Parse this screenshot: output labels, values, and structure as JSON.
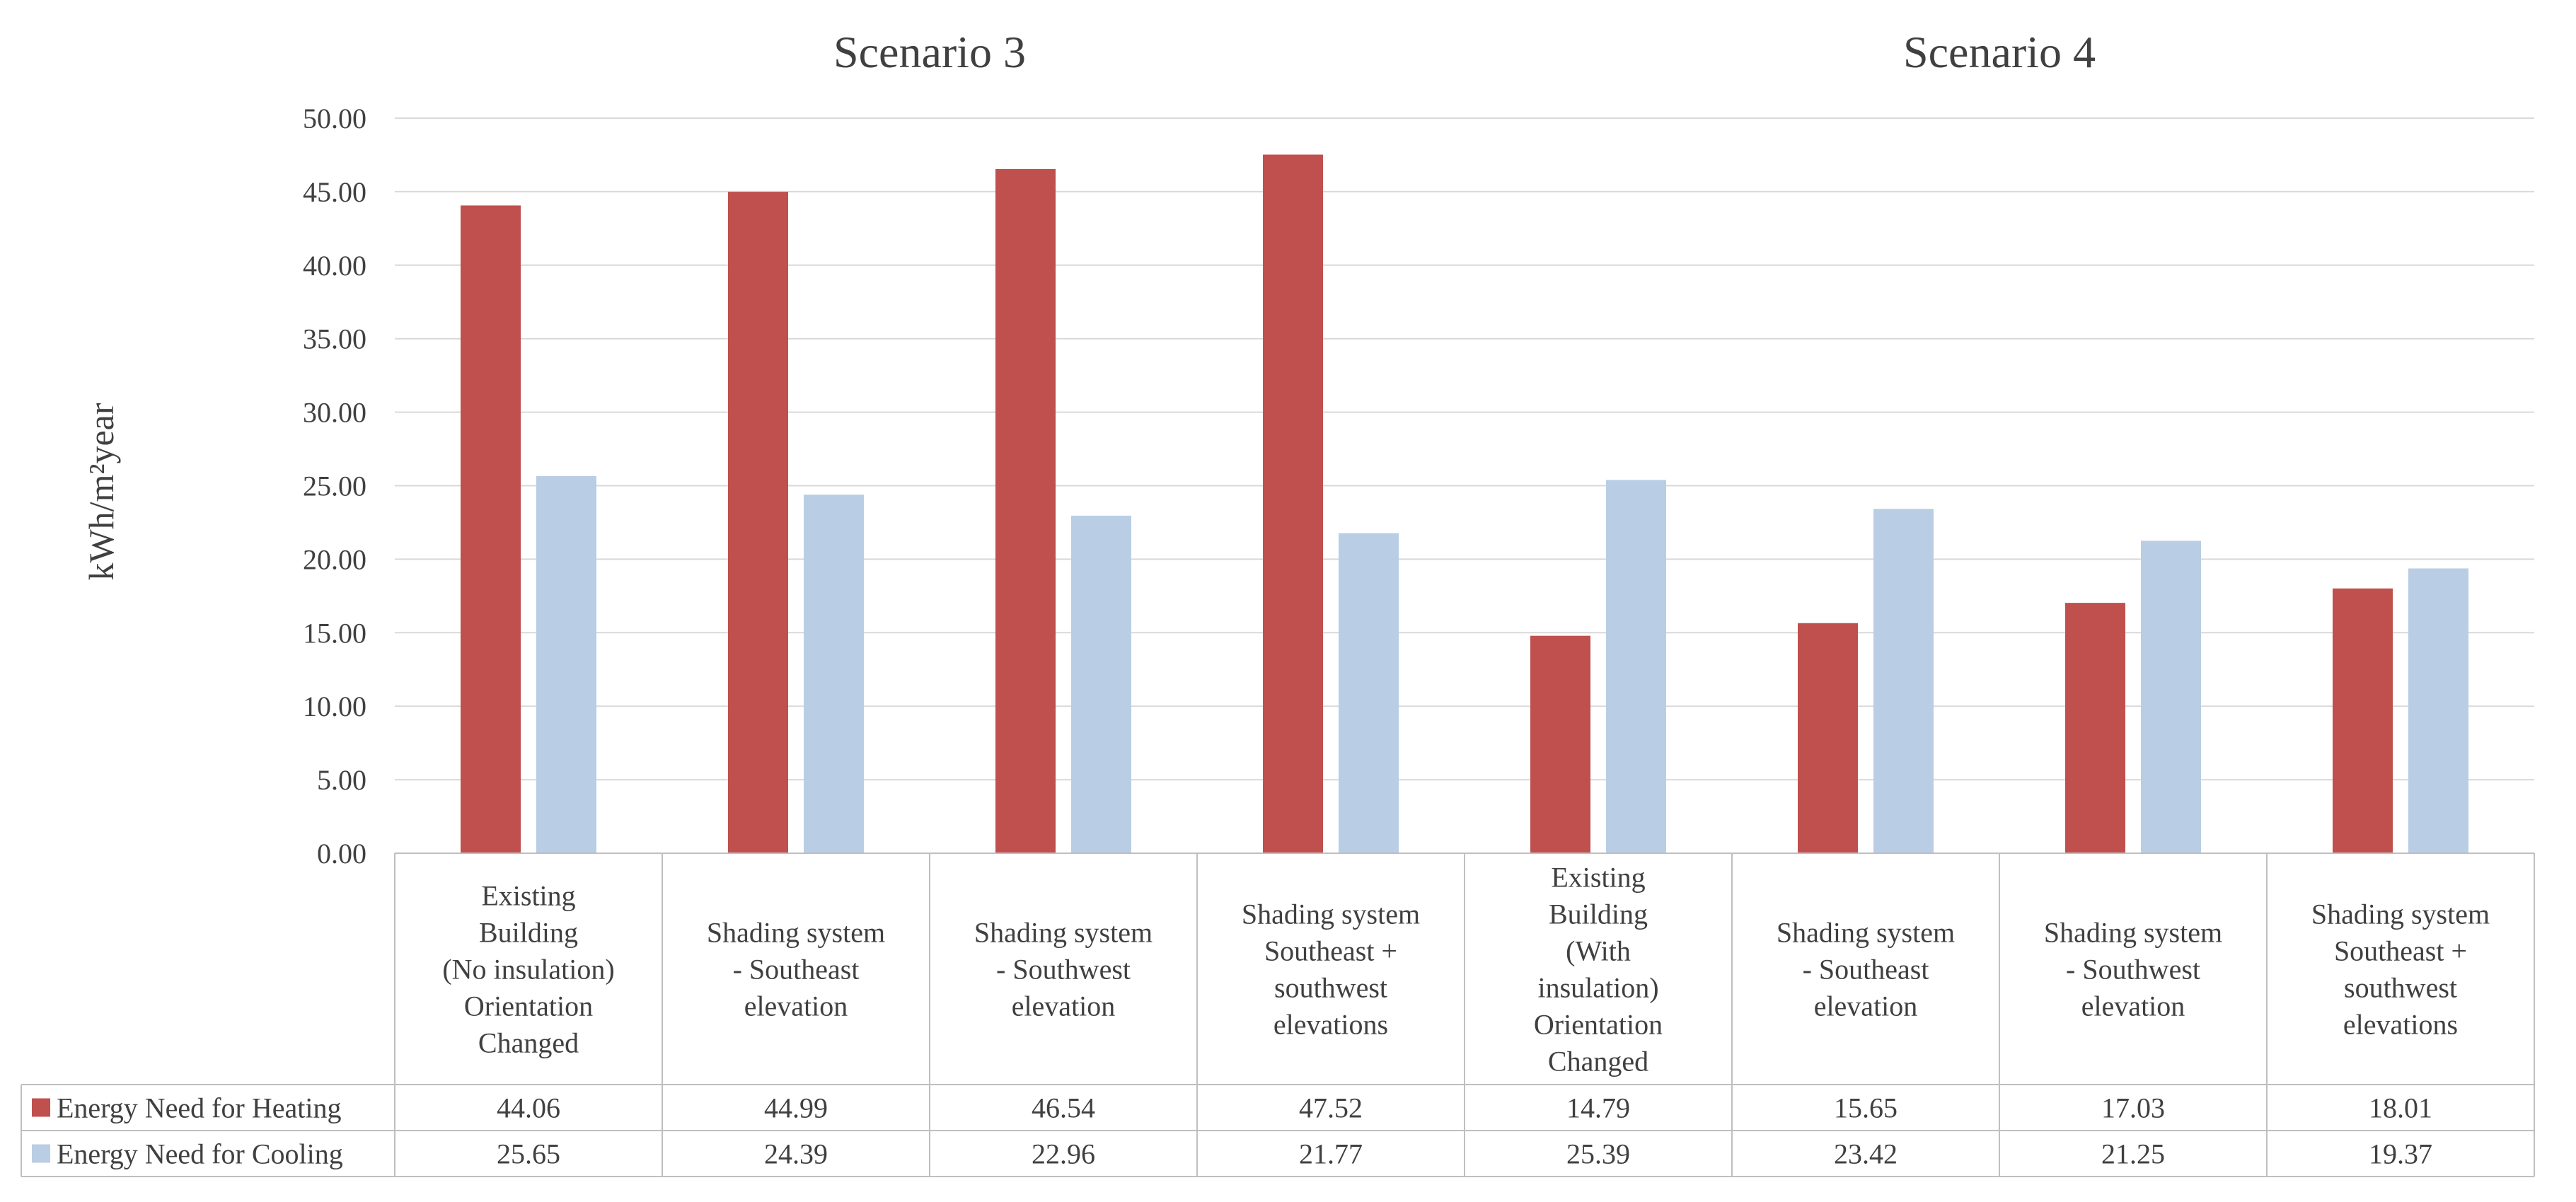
{
  "chart_data": {
    "type": "bar",
    "ylabel": "kWh/m²year",
    "ylim": [
      0,
      50
    ],
    "ytick_step": 5,
    "ytick_labels": [
      "0.00",
      "5.00",
      "10.00",
      "15.00",
      "20.00",
      "25.00",
      "30.00",
      "35.00",
      "40.00",
      "45.00",
      "50.00"
    ],
    "grid": true,
    "legend": "left of data table",
    "groups": [
      {
        "title": "Scenario 3",
        "span": [
          0,
          3
        ]
      },
      {
        "title": "Scenario 4",
        "span": [
          4,
          7
        ]
      }
    ],
    "categories": [
      [
        "Existing",
        "Building",
        "(No insulation)",
        "Orientation",
        "Changed"
      ],
      [
        "Shading system",
        "- Southeast",
        "elevation"
      ],
      [
        "Shading system",
        "- Southwest",
        "elevation"
      ],
      [
        "Shading system",
        "Southeast +",
        "southwest",
        "elevations"
      ],
      [
        "Existing",
        "Building",
        "(With",
        "insulation)",
        "Orientation",
        "Changed"
      ],
      [
        "Shading system",
        "- Southeast",
        "elevation"
      ],
      [
        "Shading system",
        "- Southwest",
        "elevation"
      ],
      [
        "Shading system",
        "Southeast +",
        "southwest",
        "elevations"
      ]
    ],
    "series": [
      {
        "name": "Energy Need for Heating",
        "color": "#C0504D",
        "values": [
          44.06,
          44.99,
          46.54,
          47.52,
          14.79,
          15.65,
          17.03,
          18.01
        ],
        "labels": [
          "44.06",
          "44.99",
          "46.54",
          "47.52",
          "14.79",
          "15.65",
          "17.03",
          "18.01"
        ]
      },
      {
        "name": "Energy Need for Cooling",
        "color": "#B9CDE5",
        "values": [
          25.65,
          24.39,
          22.96,
          21.77,
          25.39,
          23.42,
          21.25,
          19.37
        ],
        "labels": [
          "25.65",
          "24.39",
          "22.96",
          "21.77",
          "25.39",
          "23.42",
          "21.25",
          "19.37"
        ]
      }
    ]
  }
}
